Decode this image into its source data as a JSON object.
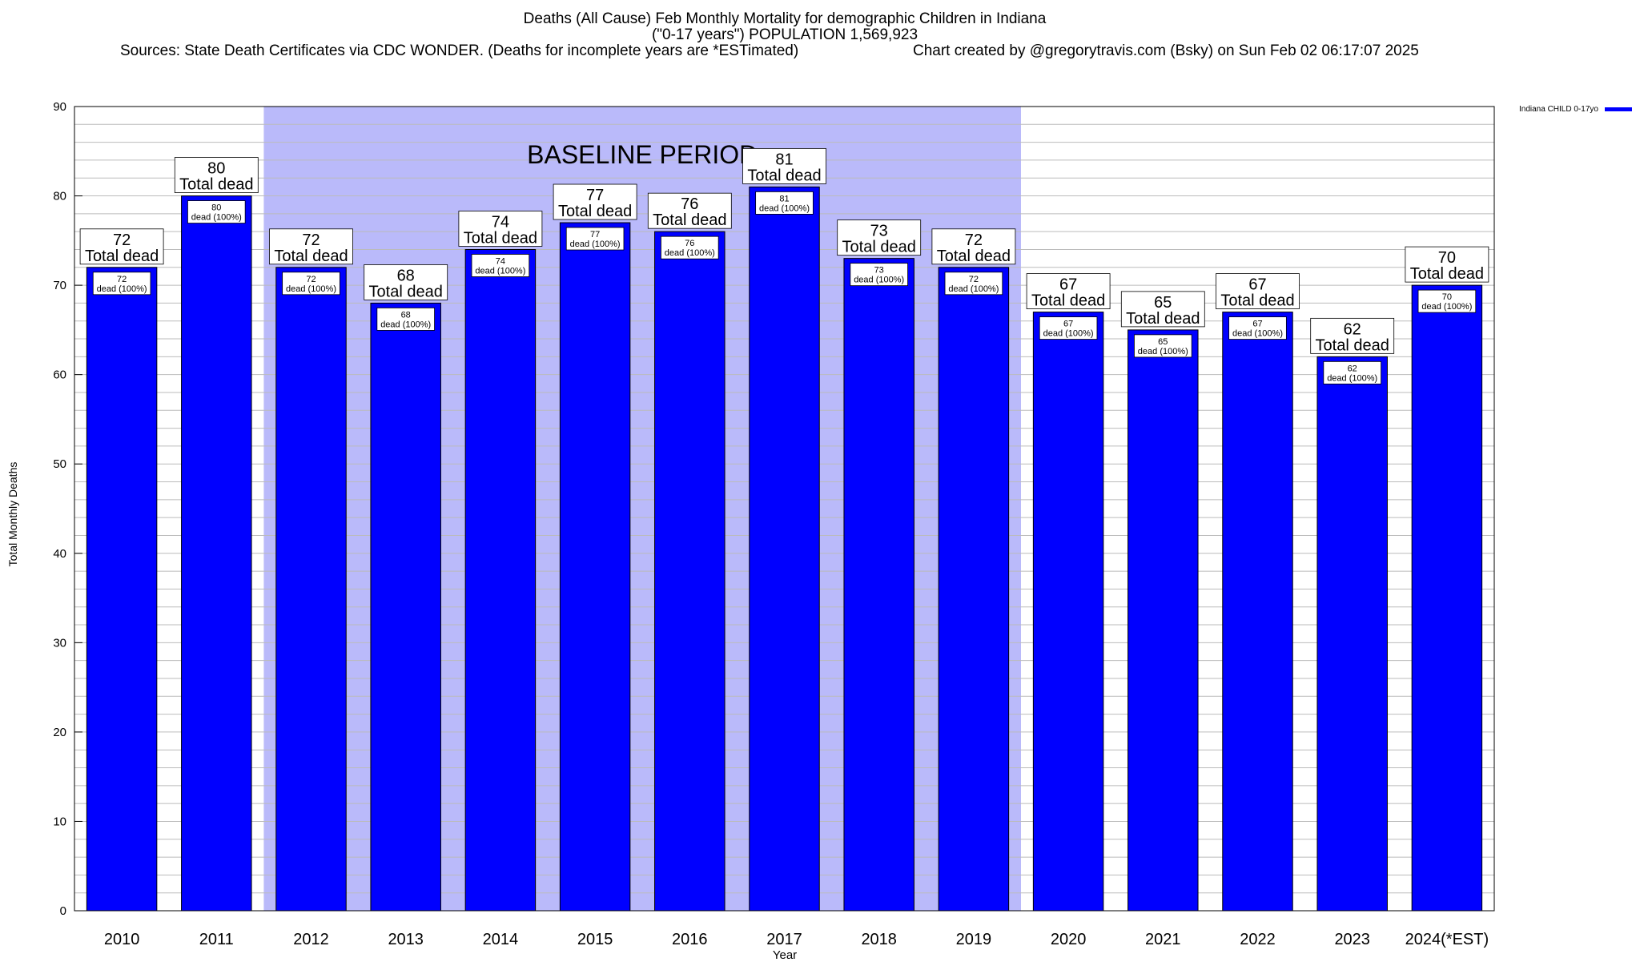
{
  "header": {
    "title": "Deaths (All Cause) Feb Monthly Mortality for demographic Children in Indiana",
    "subtitle": "(\"0-17 years\") POPULATION 1,569,923",
    "sources": "Sources: State Death Certificates via CDC WONDER. (Deaths for incomplete years are *ESTimated)",
    "credit": "Chart created by @gregorytravis.com (Bsky) on Sun Feb 02 06:17:07 2025"
  },
  "colors": {
    "bar": "#0000ff",
    "bar_outline": "#000000",
    "baseline_shade": "#babafa",
    "grid": "#bbbbbb",
    "plot_border": "#000000"
  },
  "chart_data": {
    "type": "bar",
    "title": "Deaths (All Cause) Feb Monthly Mortality for demographic Children in Indiana",
    "xlabel": "Year",
    "ylabel": "Total Monthly Deaths",
    "ylim": [
      0,
      90
    ],
    "yticks": [
      0,
      10,
      20,
      30,
      40,
      50,
      60,
      70,
      80,
      90
    ],
    "grid": true,
    "legend_position": "top-right",
    "categories": [
      "2010",
      "2011",
      "2012",
      "2013",
      "2014",
      "2015",
      "2016",
      "2017",
      "2018",
      "2019",
      "2020",
      "2021",
      "2022",
      "2023",
      "2024(*EST)"
    ],
    "series": [
      {
        "name": "Indiana CHILD 0-17yo",
        "values": [
          72,
          80,
          72,
          68,
          74,
          77,
          76,
          81,
          73,
          72,
          67,
          65,
          67,
          62,
          70
        ]
      }
    ],
    "total_label_suffix": "Total dead",
    "inner_label_suffix": "dead (100%)",
    "annotations": [
      {
        "text": "BASELINE PERIOD",
        "x_start": "2012",
        "x_end": "2019"
      }
    ]
  }
}
